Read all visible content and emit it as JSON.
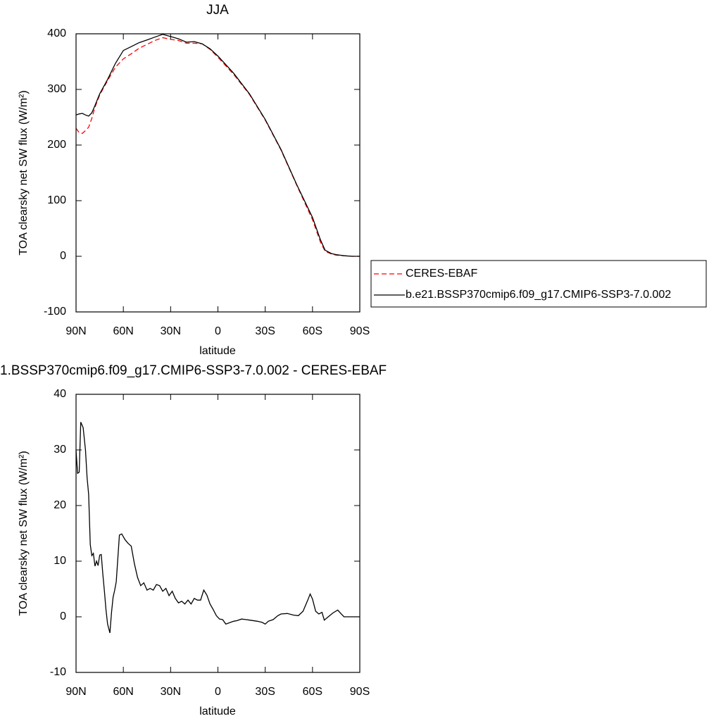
{
  "chart_data": [
    {
      "type": "line",
      "title": "JJA",
      "xlabel": "latitude",
      "ylabel": "TOA clearsky net SW flux (W/m²)",
      "x": [
        90,
        88,
        86,
        84,
        82,
        80,
        78,
        75,
        70,
        65,
        60,
        55,
        50,
        45,
        40,
        35,
        30,
        25,
        20,
        15,
        10,
        5,
        0,
        -10,
        -20,
        -30,
        -40,
        -50,
        -60,
        -65,
        -68,
        -72,
        -75,
        -80,
        -85,
        -90
      ],
      "series": [
        {
          "name": "CERES-EBAF",
          "color": "#ff0000",
          "dash": true,
          "values": [
            230,
            222,
            221,
            226,
            232,
            248,
            268,
            290,
            316,
            340,
            355,
            364,
            374,
            381,
            388,
            393,
            390,
            388,
            383,
            383,
            382,
            372,
            358,
            327,
            291,
            245,
            191,
            128,
            66,
            26,
            9,
            4,
            2,
            1,
            0,
            0
          ]
        },
        {
          "name": "b.e21.BSSP370cmip6.f09_g17.CMIP6-SSP3-7.0.002",
          "color": "#000000",
          "dash": false,
          "values": [
            254,
            256,
            257,
            254,
            252,
            258,
            271,
            292,
            318,
            347,
            370,
            377,
            384,
            389,
            394,
            399,
            395,
            391,
            385,
            386,
            382,
            373,
            360,
            329,
            292,
            246,
            192,
            129,
            70,
            30,
            11,
            5,
            3,
            1,
            0,
            0
          ]
        }
      ],
      "xlim": [
        90,
        -90
      ],
      "xticks": [
        {
          "value": 90,
          "label": "90N"
        },
        {
          "value": 60,
          "label": "60N"
        },
        {
          "value": 30,
          "label": "30N"
        },
        0,
        {
          "value": -30,
          "label": "30S"
        },
        {
          "value": -60,
          "label": "60S"
        },
        {
          "value": -90,
          "label": "90S"
        }
      ],
      "ylim": [
        -100,
        400
      ],
      "yticks": [
        -100,
        0,
        100,
        200,
        300,
        400
      ],
      "legend": "right"
    },
    {
      "type": "line",
      "title": "1.BSSP370cmip6.f09_g17.CMIP6-SSP3-7.0.002 - CERES-EBAF",
      "xlabel": "latitude",
      "ylabel": "TOA clearsky net SW flux (W/m²)",
      "x": [
        90,
        89,
        88,
        87,
        85.5,
        84,
        83,
        82,
        81,
        80,
        79,
        78,
        77,
        76,
        75,
        74,
        73,
        72,
        71,
        70,
        68.5,
        67.5,
        66.5,
        65.5,
        64.5,
        62.5,
        61,
        59,
        57,
        55,
        53,
        51,
        49,
        47,
        45,
        43,
        41,
        39,
        37,
        35,
        33,
        31,
        29,
        27,
        25,
        23,
        21,
        19,
        17,
        15,
        13,
        11,
        9,
        7,
        5,
        3,
        1,
        -1,
        -3,
        -5,
        -8,
        -10,
        -12,
        -15,
        -18,
        -20,
        -25,
        -28,
        -30,
        -32,
        -35,
        -38,
        -40,
        -44,
        -48,
        -51,
        -54,
        -57,
        -58.5,
        -60,
        -62,
        -64,
        -66,
        -67.5,
        -70,
        -73,
        -76,
        -78,
        -80,
        -85,
        -90
      ],
      "series": [
        {
          "color": "#000000",
          "dash": false,
          "values": [
            29.9,
            25.8,
            26,
            35,
            34,
            30,
            25,
            22,
            13,
            11,
            11.4,
            9.1,
            10,
            9.2,
            11.1,
            11.2,
            7.6,
            4.6,
            1.3,
            -1.3,
            -2.9,
            0.8,
            3.5,
            4.8,
            6.3,
            14.7,
            14.9,
            13.9,
            13.2,
            12.7,
            9.6,
            7.1,
            5.6,
            6.1,
            4.8,
            5.1,
            4.8,
            5.8,
            5.6,
            4.6,
            5.1,
            3.8,
            4.6,
            3.3,
            2.5,
            2.8,
            2.3,
            3.0,
            2.3,
            3.3,
            3.0,
            3.0,
            4.8,
            3.9,
            2.3,
            1.3,
            0.2,
            -0.4,
            -0.5,
            -1.3,
            -1.0,
            -0.8,
            -0.7,
            -0.4,
            -0.5,
            -0.6,
            -0.8,
            -1.0,
            -1.3,
            -0.8,
            -0.5,
            0.2,
            0.5,
            0.6,
            0.3,
            0.2,
            1.0,
            3.0,
            4.1,
            3.2,
            1.0,
            0.5,
            0.8,
            -0.6,
            0.0,
            0.7,
            1.2,
            0.6,
            0.0,
            0,
            0
          ]
        }
      ],
      "xlim": [
        90,
        -90
      ],
      "xticks": [
        {
          "value": 90,
          "label": "90N"
        },
        {
          "value": 60,
          "label": "60N"
        },
        {
          "value": 30,
          "label": "30N"
        },
        0,
        {
          "value": -30,
          "label": "30S"
        },
        {
          "value": -60,
          "label": "60S"
        },
        {
          "value": -90,
          "label": "90S"
        }
      ],
      "ylim": [
        -10,
        40
      ],
      "yticks": [
        -10,
        0,
        10,
        20,
        30,
        40
      ]
    }
  ]
}
